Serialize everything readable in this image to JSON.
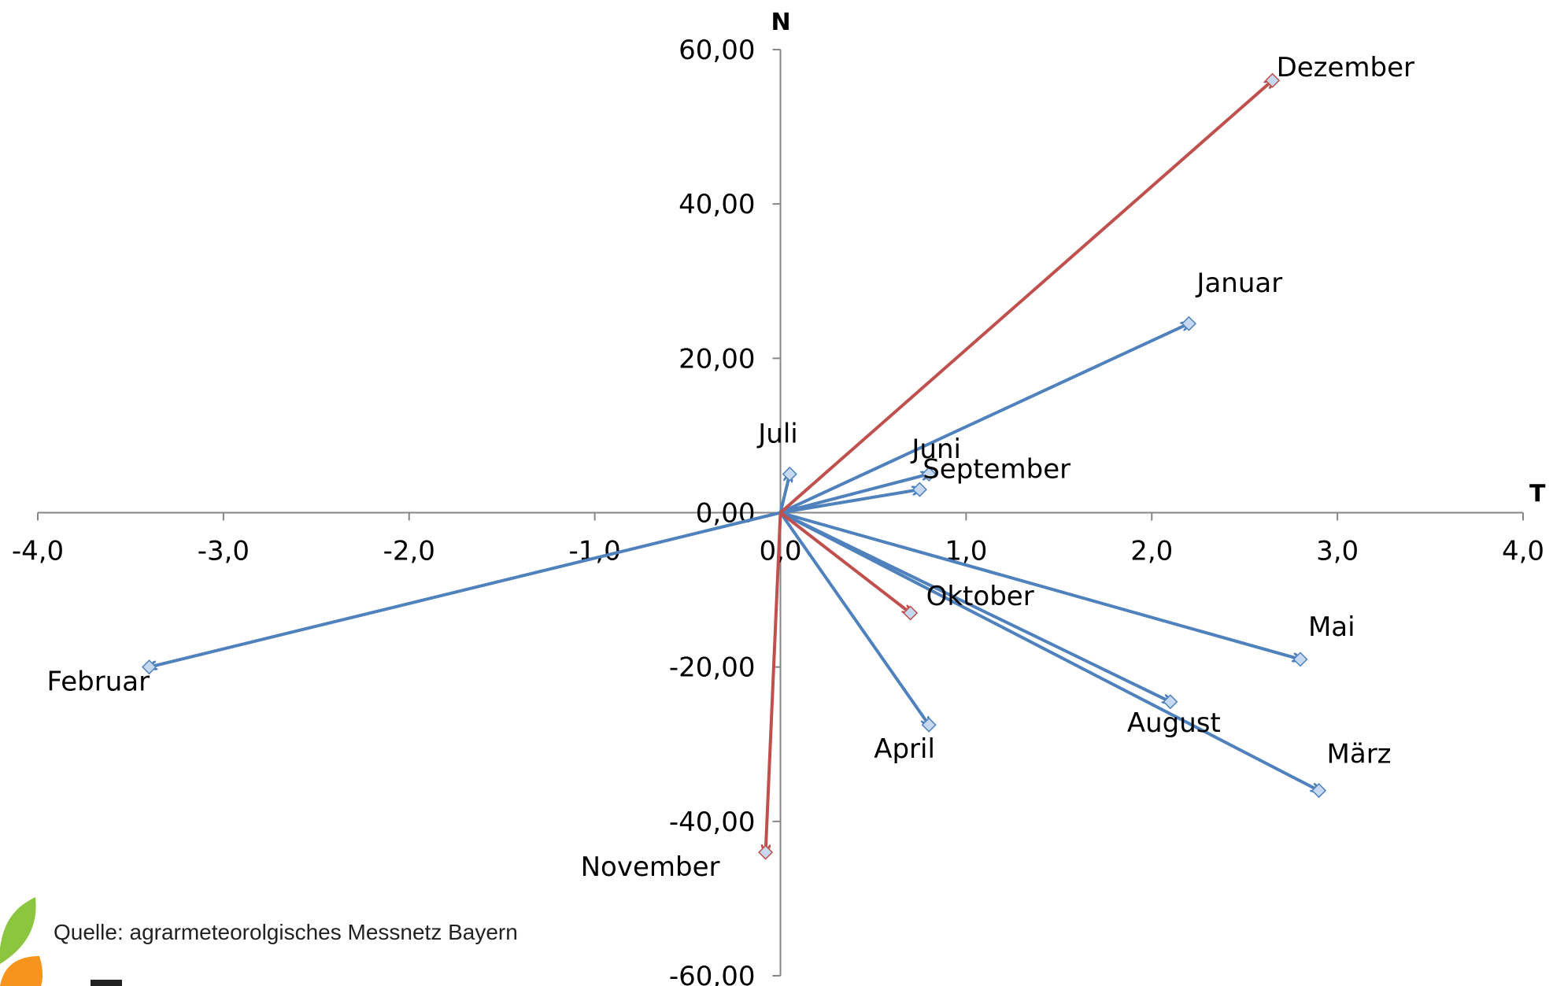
{
  "chart_data": {
    "type": "scatter",
    "subtype": "vectors-from-origin",
    "x_axis_label": "T",
    "y_axis_label": "N",
    "xlim": [
      -4.0,
      4.0
    ],
    "ylim": [
      -60,
      60
    ],
    "x_ticks": [
      -4.0,
      -3.0,
      -2.0,
      -1.0,
      0.0,
      1.0,
      2.0,
      3.0,
      4.0
    ],
    "y_ticks": [
      60,
      40,
      20,
      0,
      -20,
      -40,
      -60
    ],
    "x_tick_labels": [
      "-4,0",
      "-3,0",
      "-2,0",
      "-1,0",
      "0,0",
      "1,0",
      "2,0",
      "3,0",
      "4,0"
    ],
    "y_tick_labels": [
      "60,00",
      "40,00",
      "20,00",
      "0,00",
      "-20,00",
      "-40,00",
      "-60,00"
    ],
    "grid": false,
    "series": [
      {
        "color": "#4f81bd",
        "points": [
          {
            "label": "Januar",
            "x": 2.2,
            "y": 24.5
          },
          {
            "label": "Februar",
            "x": -3.4,
            "y": -20.0
          },
          {
            "label": "März",
            "x": 2.9,
            "y": -36.0
          },
          {
            "label": "April",
            "x": 0.8,
            "y": -27.5
          },
          {
            "label": "Mai",
            "x": 2.8,
            "y": -19.0
          },
          {
            "label": "Juni",
            "x": 0.75,
            "y": 3.0
          },
          {
            "label": "Juli",
            "x": 0.05,
            "y": 5.0
          },
          {
            "label": "August",
            "x": 2.1,
            "y": -24.5
          },
          {
            "label": "September",
            "x": 0.8,
            "y": 5.0
          }
        ]
      },
      {
        "color": "#c0504d",
        "points": [
          {
            "label": "Oktober",
            "x": 0.7,
            "y": -13.0
          },
          {
            "label": "November",
            "x": -0.08,
            "y": -44.0
          },
          {
            "label": "Dezember",
            "x": 2.65,
            "y": 56.0
          }
        ]
      }
    ],
    "x_axis_color": "#868686"
  },
  "source_text": "Quelle: agrarmeteorolgisches Messnetz  Bayern",
  "logo": {
    "colors": [
      "#8cc63f",
      "#f7941d"
    ]
  }
}
